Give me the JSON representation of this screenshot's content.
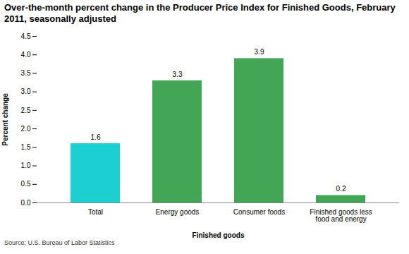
{
  "chart_data": {
    "type": "bar",
    "title": "Over-the-month percent change in the Producer Price Index for Finished Goods, February 2011, seasonally adjusted",
    "x_label": "Finished goods",
    "y_label": "Percent change",
    "caption": "Source: U.S. Bureau of Labor Statistics",
    "categories": [
      "Total",
      "Energy goods",
      "Consumer foods",
      "Finished goods less food and energy"
    ],
    "values": [
      1.6,
      3.3,
      3.9,
      0.2
    ],
    "colors": [
      "#1ccfd1",
      "#43a556",
      "#43a556",
      "#43a556"
    ],
    "ylim": [
      0,
      4.5
    ],
    "yticks": [
      {
        "value": 0,
        "label": "0.0"
      },
      0.5,
      {
        "value": 1,
        "label": "1.0"
      },
      1.5,
      {
        "value": 2,
        "label": "2.0"
      },
      2.5,
      {
        "value": 3,
        "label": "3.0"
      },
      3.5,
      {
        "value": 4,
        "label": "4.0"
      },
      4.5
    ],
    "grid": false,
    "data_labels": true
  }
}
